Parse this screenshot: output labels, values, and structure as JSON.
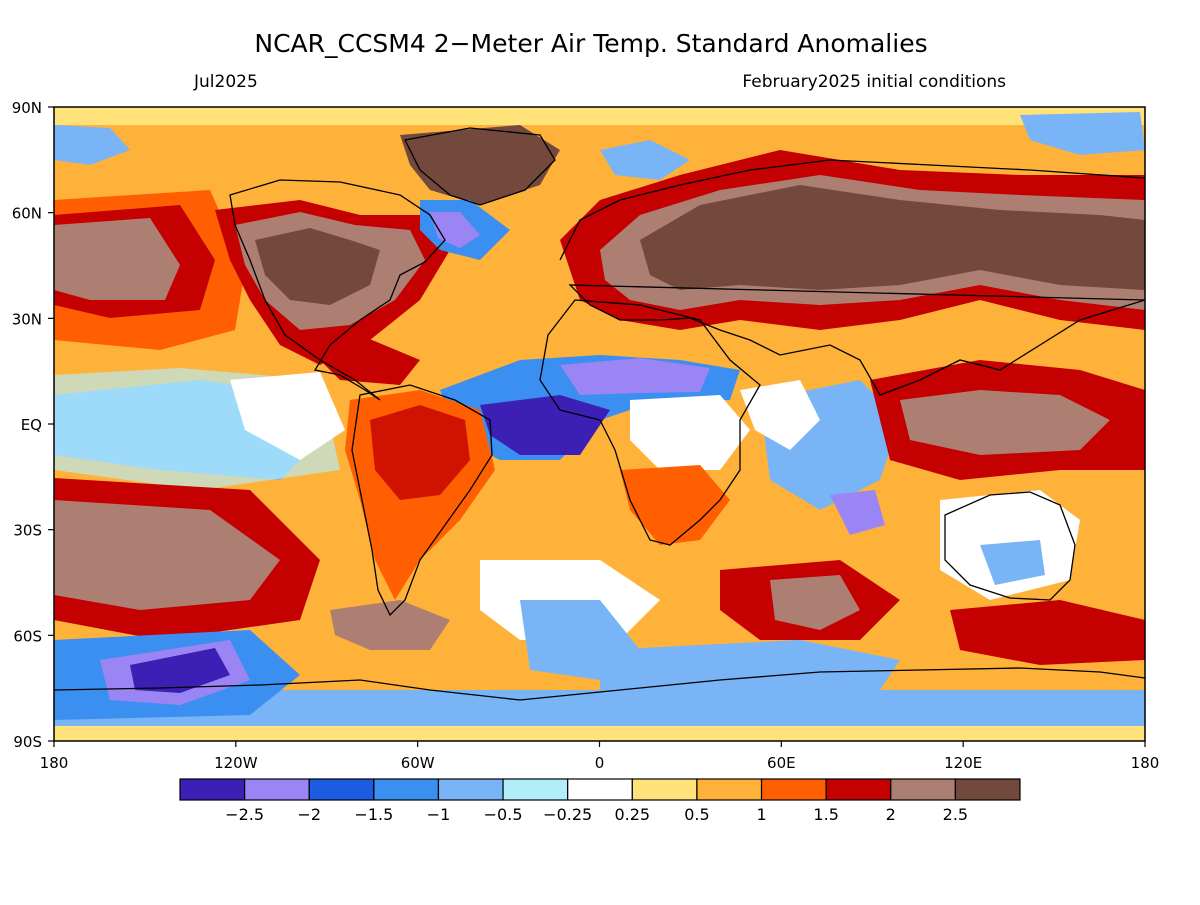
{
  "title": "NCAR_CCSM4 2−Meter Air Temp. Standard Anomalies",
  "valid_month": "Jul2025",
  "init_conditions": "February2025 initial conditions",
  "map": {
    "lat_ticks": [
      {
        "lat": 90,
        "label": "90N"
      },
      {
        "lat": 60,
        "label": "60N"
      },
      {
        "lat": 30,
        "label": "30N"
      },
      {
        "lat": 0,
        "label": "EQ"
      },
      {
        "lat": -30,
        "label": "30S"
      },
      {
        "lat": -60,
        "label": "60S"
      },
      {
        "lat": -90,
        "label": "90S"
      }
    ],
    "lon_ticks": [
      {
        "lon": -180,
        "label": "180"
      },
      {
        "lon": -120,
        "label": "120W"
      },
      {
        "lon": -60,
        "label": "60W"
      },
      {
        "lon": 0,
        "label": "0"
      },
      {
        "lon": 60,
        "label": "60E"
      },
      {
        "lon": 120,
        "label": "120E"
      },
      {
        "lon": 180,
        "label": "180"
      }
    ]
  },
  "colorbar": {
    "colors": [
      "#3c1fb4",
      "#9b85f4",
      "#1c5ce0",
      "#3b8ff0",
      "#79b4f6",
      "#b2eefa",
      "#ffffff",
      "#ffe27a",
      "#ffb23a",
      "#ff5f00",
      "#c40000",
      "#ad7f72",
      "#73493e"
    ],
    "labels": [
      "−2.5",
      "−2",
      "−1.5",
      "−1",
      "−0.5",
      "−0.25",
      "0.25",
      "0.5",
      "1",
      "1.5",
      "2",
      "2.5"
    ]
  }
}
